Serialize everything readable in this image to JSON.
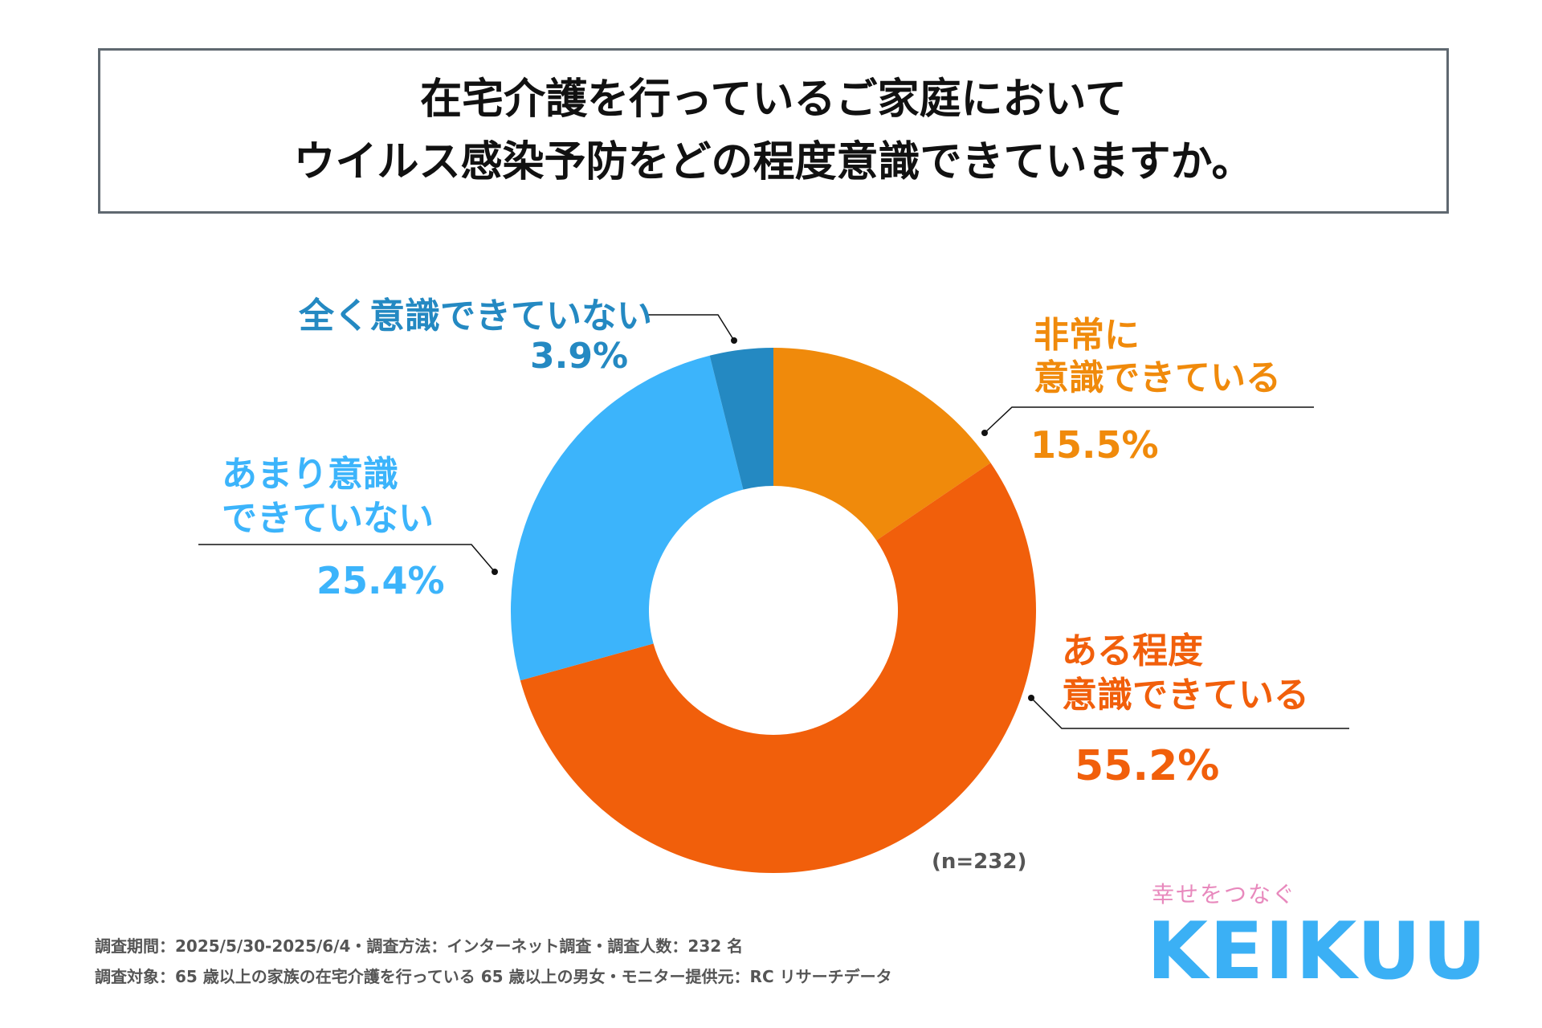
{
  "title": {
    "line1": "在宅介護を行っているご家庭において",
    "line2": "ウイルス感染予防をどの程度意識できていますか。"
  },
  "chart_data": {
    "type": "pie",
    "style": "donut",
    "title": "在宅介護を行っているご家庭において ウイルス感染予防をどの程度意識できていますか。",
    "slices": [
      {
        "label": "非常に 意識できている",
        "label_lines": [
          "非常に",
          "意識できている"
        ],
        "value": 15.5,
        "value_text": "15.5%",
        "color": "#f08a0b"
      },
      {
        "label": "ある程度 意識できている",
        "label_lines": [
          "ある程度",
          "意識できている"
        ],
        "value": 55.2,
        "value_text": "55.2%",
        "color": "#f15f0b"
      },
      {
        "label": "あまり意識 できていない",
        "label_lines": [
          "あまり意識",
          "できていない"
        ],
        "value": 25.4,
        "value_text": "25.4%",
        "color": "#3cb4fb"
      },
      {
        "label": "全く意識できていない",
        "label_lines": [
          "全く意識できていない"
        ],
        "value": 3.9,
        "value_text": "3.9%",
        "color": "#2489c2"
      }
    ],
    "n_label": "(n=232)"
  },
  "footer": {
    "line1": "調査期間：2025/5/30-2025/6/4・調査方法：インターネット調査・調査人数：232 名",
    "line2": "調査対象：65 歳以上の家族の在宅介護を行っている 65 歳以上の男女・モニター提供元：RC リサーチデータ"
  },
  "logo": {
    "tagline": "幸せをつなぐ",
    "name": "KEIKUU"
  },
  "colors": {
    "line": "#111111",
    "title_border": "#5f6870",
    "footer_text": "#555555",
    "logo_blue": "#3bb0f5",
    "logo_pink": "#e889bd"
  }
}
